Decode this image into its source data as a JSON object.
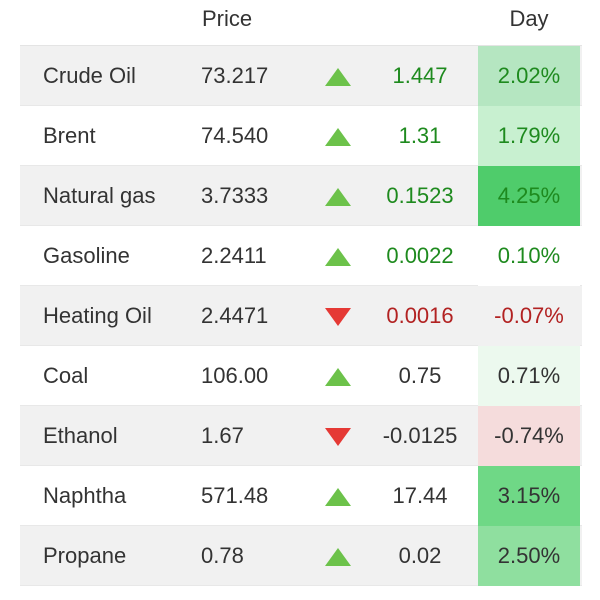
{
  "header": {
    "price_label": "Price",
    "day_label": "Day"
  },
  "colors": {
    "up_arrow": "#6cc24a",
    "down_arrow": "#e53935",
    "up_text": "#1e8a1e",
    "down_text": "#b22222"
  },
  "rows": [
    {
      "name": "Crude Oil",
      "price": "73.217",
      "direction": "up-arrow-icon",
      "change": "1.447",
      "day": "2.02%",
      "change_color": "up",
      "day_bg": "#b5e6c1"
    },
    {
      "name": "Brent",
      "price": "74.540",
      "direction": "up-arrow-icon",
      "change": "1.31",
      "day": "1.79%",
      "change_color": "up",
      "day_bg": "#c8f0d0"
    },
    {
      "name": "Natural gas",
      "price": "3.7333",
      "direction": "up-arrow-icon",
      "change": "0.1523",
      "day": "4.25%",
      "change_color": "up",
      "day_bg": "#4fcc6b"
    },
    {
      "name": "Gasoline",
      "price": "2.2411",
      "direction": "up-arrow-icon",
      "change": "0.0022",
      "day": "0.10%",
      "change_color": "up",
      "day_bg": "#ffffff"
    },
    {
      "name": "Heating Oil",
      "price": "2.4471",
      "direction": "down-arrow-icon",
      "change": "0.0016",
      "day": "-0.07%",
      "change_color": "down",
      "day_bg": "#f1f1f1"
    },
    {
      "name": "Coal",
      "price": "106.00",
      "direction": "up-arrow-icon",
      "change": "0.75",
      "day": "0.71%",
      "change_color": "neutral",
      "day_bg": "#ecf9ee"
    },
    {
      "name": "Ethanol",
      "price": "1.67",
      "direction": "down-arrow-icon",
      "change": "-0.0125",
      "day": "-0.74%",
      "change_color": "neutral",
      "day_bg": "#f5dcdc"
    },
    {
      "name": "Naphtha",
      "price": "571.48",
      "direction": "up-arrow-icon",
      "change": "17.44",
      "day": "3.15%",
      "change_color": "neutral",
      "day_bg": "#6fd886"
    },
    {
      "name": "Propane",
      "price": "0.78",
      "direction": "up-arrow-icon",
      "change": "0.02",
      "day": "2.50%",
      "change_color": "neutral",
      "day_bg": "#8fdf9f"
    }
  ]
}
